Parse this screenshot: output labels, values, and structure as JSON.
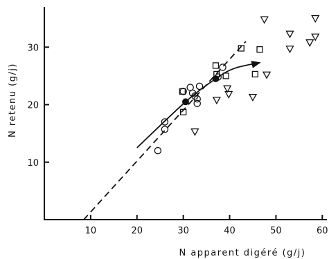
{
  "chart_data": {
    "type": "scatter",
    "title": "",
    "xlabel": "N apparent digéré (g/j)",
    "ylabel": "N retenu (g/j)",
    "xlim": [
      0,
      61
    ],
    "ylim": [
      0,
      37
    ],
    "xticks": [
      10,
      20,
      30,
      40,
      50,
      60
    ],
    "yticks": [
      10,
      20,
      30
    ],
    "grid": false,
    "legend": "none",
    "series": [
      {
        "marker": "circle-open",
        "points": [
          [
            24.5,
            12.0
          ],
          [
            26.0,
            15.7
          ],
          [
            26.0,
            17.0
          ],
          [
            30.0,
            22.3
          ],
          [
            31.5,
            23.0
          ],
          [
            32.0,
            22.0
          ],
          [
            32.5,
            21.5
          ],
          [
            33.0,
            21.0
          ],
          [
            33.0,
            20.2
          ],
          [
            33.5,
            23.2
          ],
          [
            37.5,
            24.8
          ],
          [
            38.5,
            26.5
          ]
        ]
      },
      {
        "marker": "square-open",
        "points": [
          [
            29.8,
            22.3
          ],
          [
            30.0,
            18.7
          ],
          [
            37.0,
            26.8
          ],
          [
            37.2,
            25.3
          ],
          [
            39.2,
            25.0
          ],
          [
            42.5,
            29.8
          ],
          [
            45.5,
            25.3
          ],
          [
            46.5,
            29.6
          ]
        ]
      },
      {
        "marker": "triangle-down-open",
        "points": [
          [
            32.5,
            15.3
          ],
          [
            37.2,
            20.8
          ],
          [
            39.5,
            22.8
          ],
          [
            39.8,
            21.8
          ],
          [
            45.0,
            21.3
          ],
          [
            47.5,
            34.8
          ],
          [
            48.0,
            25.2
          ],
          [
            53.0,
            32.3
          ],
          [
            53.0,
            29.7
          ],
          [
            57.3,
            30.8
          ],
          [
            58.5,
            35.0
          ],
          [
            58.5,
            31.8
          ]
        ]
      },
      {
        "marker": "mean-filled",
        "points": [
          [
            30.5,
            20.5
          ],
          [
            37.0,
            24.5
          ]
        ]
      }
    ],
    "lines": [
      {
        "style": "dashed",
        "points": [
          [
            8.5,
            0
          ],
          [
            43.5,
            31.0
          ]
        ]
      },
      {
        "style": "solid-curve-arrow",
        "points": [
          [
            20.0,
            12.5
          ],
          [
            30.5,
            20.5
          ],
          [
            37.0,
            24.5
          ],
          [
            41.0,
            26.3
          ],
          [
            46.5,
            27.3
          ]
        ]
      }
    ]
  }
}
